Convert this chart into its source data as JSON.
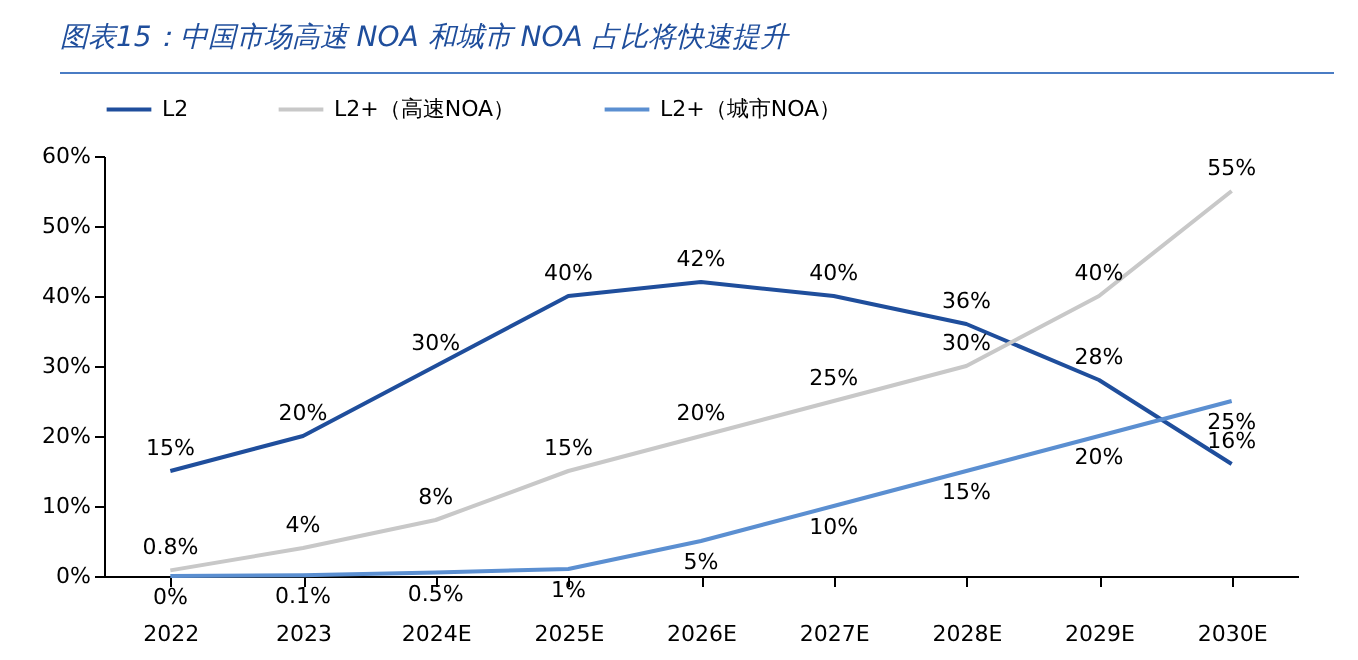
{
  "chart_data": {
    "type": "line",
    "title": "图表15：中国市场高速 NOA 和城市 NOA 占比将快速提升",
    "categories": [
      "2022",
      "2023",
      "2024E",
      "2025E",
      "2026E",
      "2027E",
      "2028E",
      "2029E",
      "2030E"
    ],
    "series": [
      {
        "name": "L2",
        "color": "#1f4e9c",
        "values": [
          15,
          20,
          30,
          40,
          42,
          40,
          36,
          28,
          16
        ],
        "value_labels": [
          "15%",
          "20%",
          "30%",
          "40%",
          "42%",
          "40%",
          "36%",
          "28%",
          "16%"
        ]
      },
      {
        "name": "L2+（高速NOA）",
        "color": "#c8c8c8",
        "values": [
          0.8,
          4,
          8,
          15,
          20,
          25,
          30,
          40,
          55
        ],
        "value_labels": [
          "0.8%",
          "4%",
          "8%",
          "15%",
          "20%",
          "25%",
          "30%",
          "40%",
          "55%"
        ]
      },
      {
        "name": "L2+（城市NOA）",
        "color": "#5b8fd1",
        "values": [
          0,
          0.1,
          0.5,
          1,
          5,
          10,
          15,
          20,
          25
        ],
        "value_labels": [
          "0%",
          "0.1%",
          "0.5%",
          "1%",
          "5%",
          "10%",
          "15%",
          "20%",
          "25%"
        ]
      }
    ],
    "ylim": [
      0,
      60
    ],
    "yticks": [
      {
        "value": 0,
        "label": "0%"
      },
      {
        "value": 10,
        "label": "10%"
      },
      {
        "value": 20,
        "label": "20%"
      },
      {
        "value": 30,
        "label": "30%"
      },
      {
        "value": 40,
        "label": "40%"
      },
      {
        "value": 50,
        "label": "50%"
      },
      {
        "value": 60,
        "label": "60%"
      }
    ],
    "legend": "top",
    "grid": false,
    "marker": "none",
    "line_style": "solid"
  }
}
